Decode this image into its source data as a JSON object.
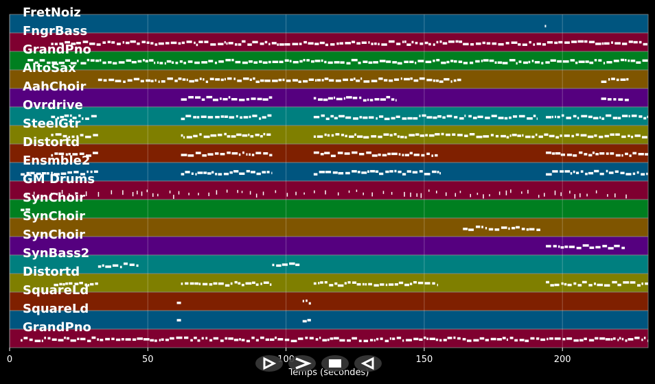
{
  "chart_data": {
    "type": "piano-roll",
    "xlabel": "Temps (secondes)",
    "xlim": [
      0,
      231
    ],
    "xticks": [
      0,
      50,
      100,
      150,
      200
    ],
    "grid": true,
    "tracks": [
      {
        "name": "FretNoiz",
        "color": "#00557f",
        "intervals": [
          [
            193.6,
            194.2
          ]
        ]
      },
      {
        "name": "FngrBass",
        "color": "#7f0030",
        "intervals": [
          [
            15,
            231
          ]
        ]
      },
      {
        "name": "GrandPno",
        "color": "#007f20",
        "intervals": [
          [
            6.5,
            231
          ]
        ]
      },
      {
        "name": "AltoSax",
        "color": "#7f5500",
        "intervals": [
          [
            32,
            164
          ],
          [
            214,
            224
          ]
        ]
      },
      {
        "name": "AahChoir",
        "color": "#55007f",
        "intervals": [
          [
            62,
            95
          ],
          [
            110,
            140
          ],
          [
            214,
            224
          ]
        ]
      },
      {
        "name": "Ovrdrive",
        "color": "#007f7f",
        "intervals": [
          [
            15,
            32
          ],
          [
            62,
            95
          ],
          [
            110,
            165
          ],
          [
            166,
            191
          ],
          [
            194,
            231
          ]
        ]
      },
      {
        "name": "SteelGtr",
        "color": "#7f7f00",
        "intervals": [
          [
            15,
            32
          ],
          [
            62,
            95
          ],
          [
            110,
            231
          ]
        ]
      },
      {
        "name": "Distortd",
        "color": "#7f2000",
        "intervals": [
          [
            15,
            32
          ],
          [
            62,
            95
          ],
          [
            110,
            155
          ],
          [
            194,
            231
          ]
        ]
      },
      {
        "name": "Ensmble2",
        "color": "#00557f",
        "intervals": [
          [
            4,
            32
          ],
          [
            62,
            95
          ],
          [
            110,
            156
          ],
          [
            194,
            231
          ]
        ]
      },
      {
        "name": "GM Drums",
        "color": "#7f0030",
        "intervals": [
          [
            6,
            223
          ]
        ],
        "style": "ticks"
      },
      {
        "name": "SynChoir",
        "color": "#007f20",
        "intervals": [
          [
            4,
            8
          ]
        ]
      },
      {
        "name": "SynChoir",
        "color": "#7f5500",
        "intervals": [
          [
            164,
            192
          ]
        ]
      },
      {
        "name": "SynChoir",
        "color": "#55007f",
        "intervals": [
          [
            194,
            223
          ]
        ]
      },
      {
        "name": "SynBass2",
        "color": "#007f7f",
        "intervals": [
          [
            32,
            47
          ],
          [
            95,
            105
          ]
        ]
      },
      {
        "name": "Distortd",
        "color": "#7f7f00",
        "intervals": [
          [
            16,
            32
          ],
          [
            62,
            95
          ],
          [
            110,
            155
          ],
          [
            194,
            231
          ]
        ]
      },
      {
        "name": "SquareLd",
        "color": "#7f2000",
        "intervals": [
          [
            60.5,
            62
          ],
          [
            106,
            109
          ]
        ]
      },
      {
        "name": "SquareLd",
        "color": "#00557f",
        "intervals": [
          [
            60.5,
            62
          ],
          [
            106,
            109
          ]
        ]
      },
      {
        "name": "GrandPno",
        "color": "#7f0030",
        "intervals": [
          [
            4,
            231
          ]
        ]
      }
    ]
  },
  "controls": [
    {
      "name": "play",
      "icon": "play-outline-icon"
    },
    {
      "name": "forward",
      "icon": "chevron-right-icon"
    },
    {
      "name": "stop",
      "icon": "stop-icon"
    },
    {
      "name": "back",
      "icon": "triangle-left-outline-icon"
    }
  ]
}
